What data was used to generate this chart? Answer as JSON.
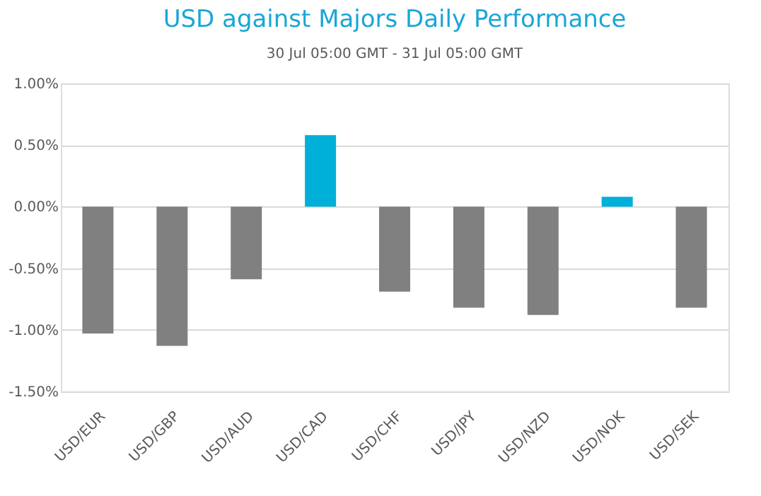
{
  "chart_data": {
    "type": "bar",
    "title": "USD against Majors Daily Performance",
    "subtitle": "30 Jul 05:00 GMT -  31 Jul 05:00 GMT",
    "categories": [
      "USD/EUR",
      "USD/GBP",
      "USD/AUD",
      "USD/CAD",
      "USD/CHF",
      "USD/JPY",
      "USD/NZD",
      "USD/NOK",
      "USD/SEK"
    ],
    "values": [
      -1.03,
      -1.13,
      -0.59,
      0.58,
      -0.69,
      -0.82,
      -0.88,
      0.08,
      -0.82
    ],
    "colors": [
      "#808080",
      "#808080",
      "#808080",
      "#00b0d8",
      "#808080",
      "#808080",
      "#808080",
      "#00b0d8",
      "#808080"
    ],
    "ylim": [
      -1.5,
      1.0
    ],
    "yticks": [
      {
        "value": -1.5,
        "label": "-1.50%"
      },
      {
        "value": -1.0,
        "label": "-1.00%"
      },
      {
        "value": -0.5,
        "label": "-0.50%"
      },
      {
        "value": 0.0,
        "label": "0.00%"
      },
      {
        "value": 0.5,
        "label": "0.50%"
      },
      {
        "value": 1.0,
        "label": "1.00%"
      }
    ],
    "grid": "y"
  }
}
